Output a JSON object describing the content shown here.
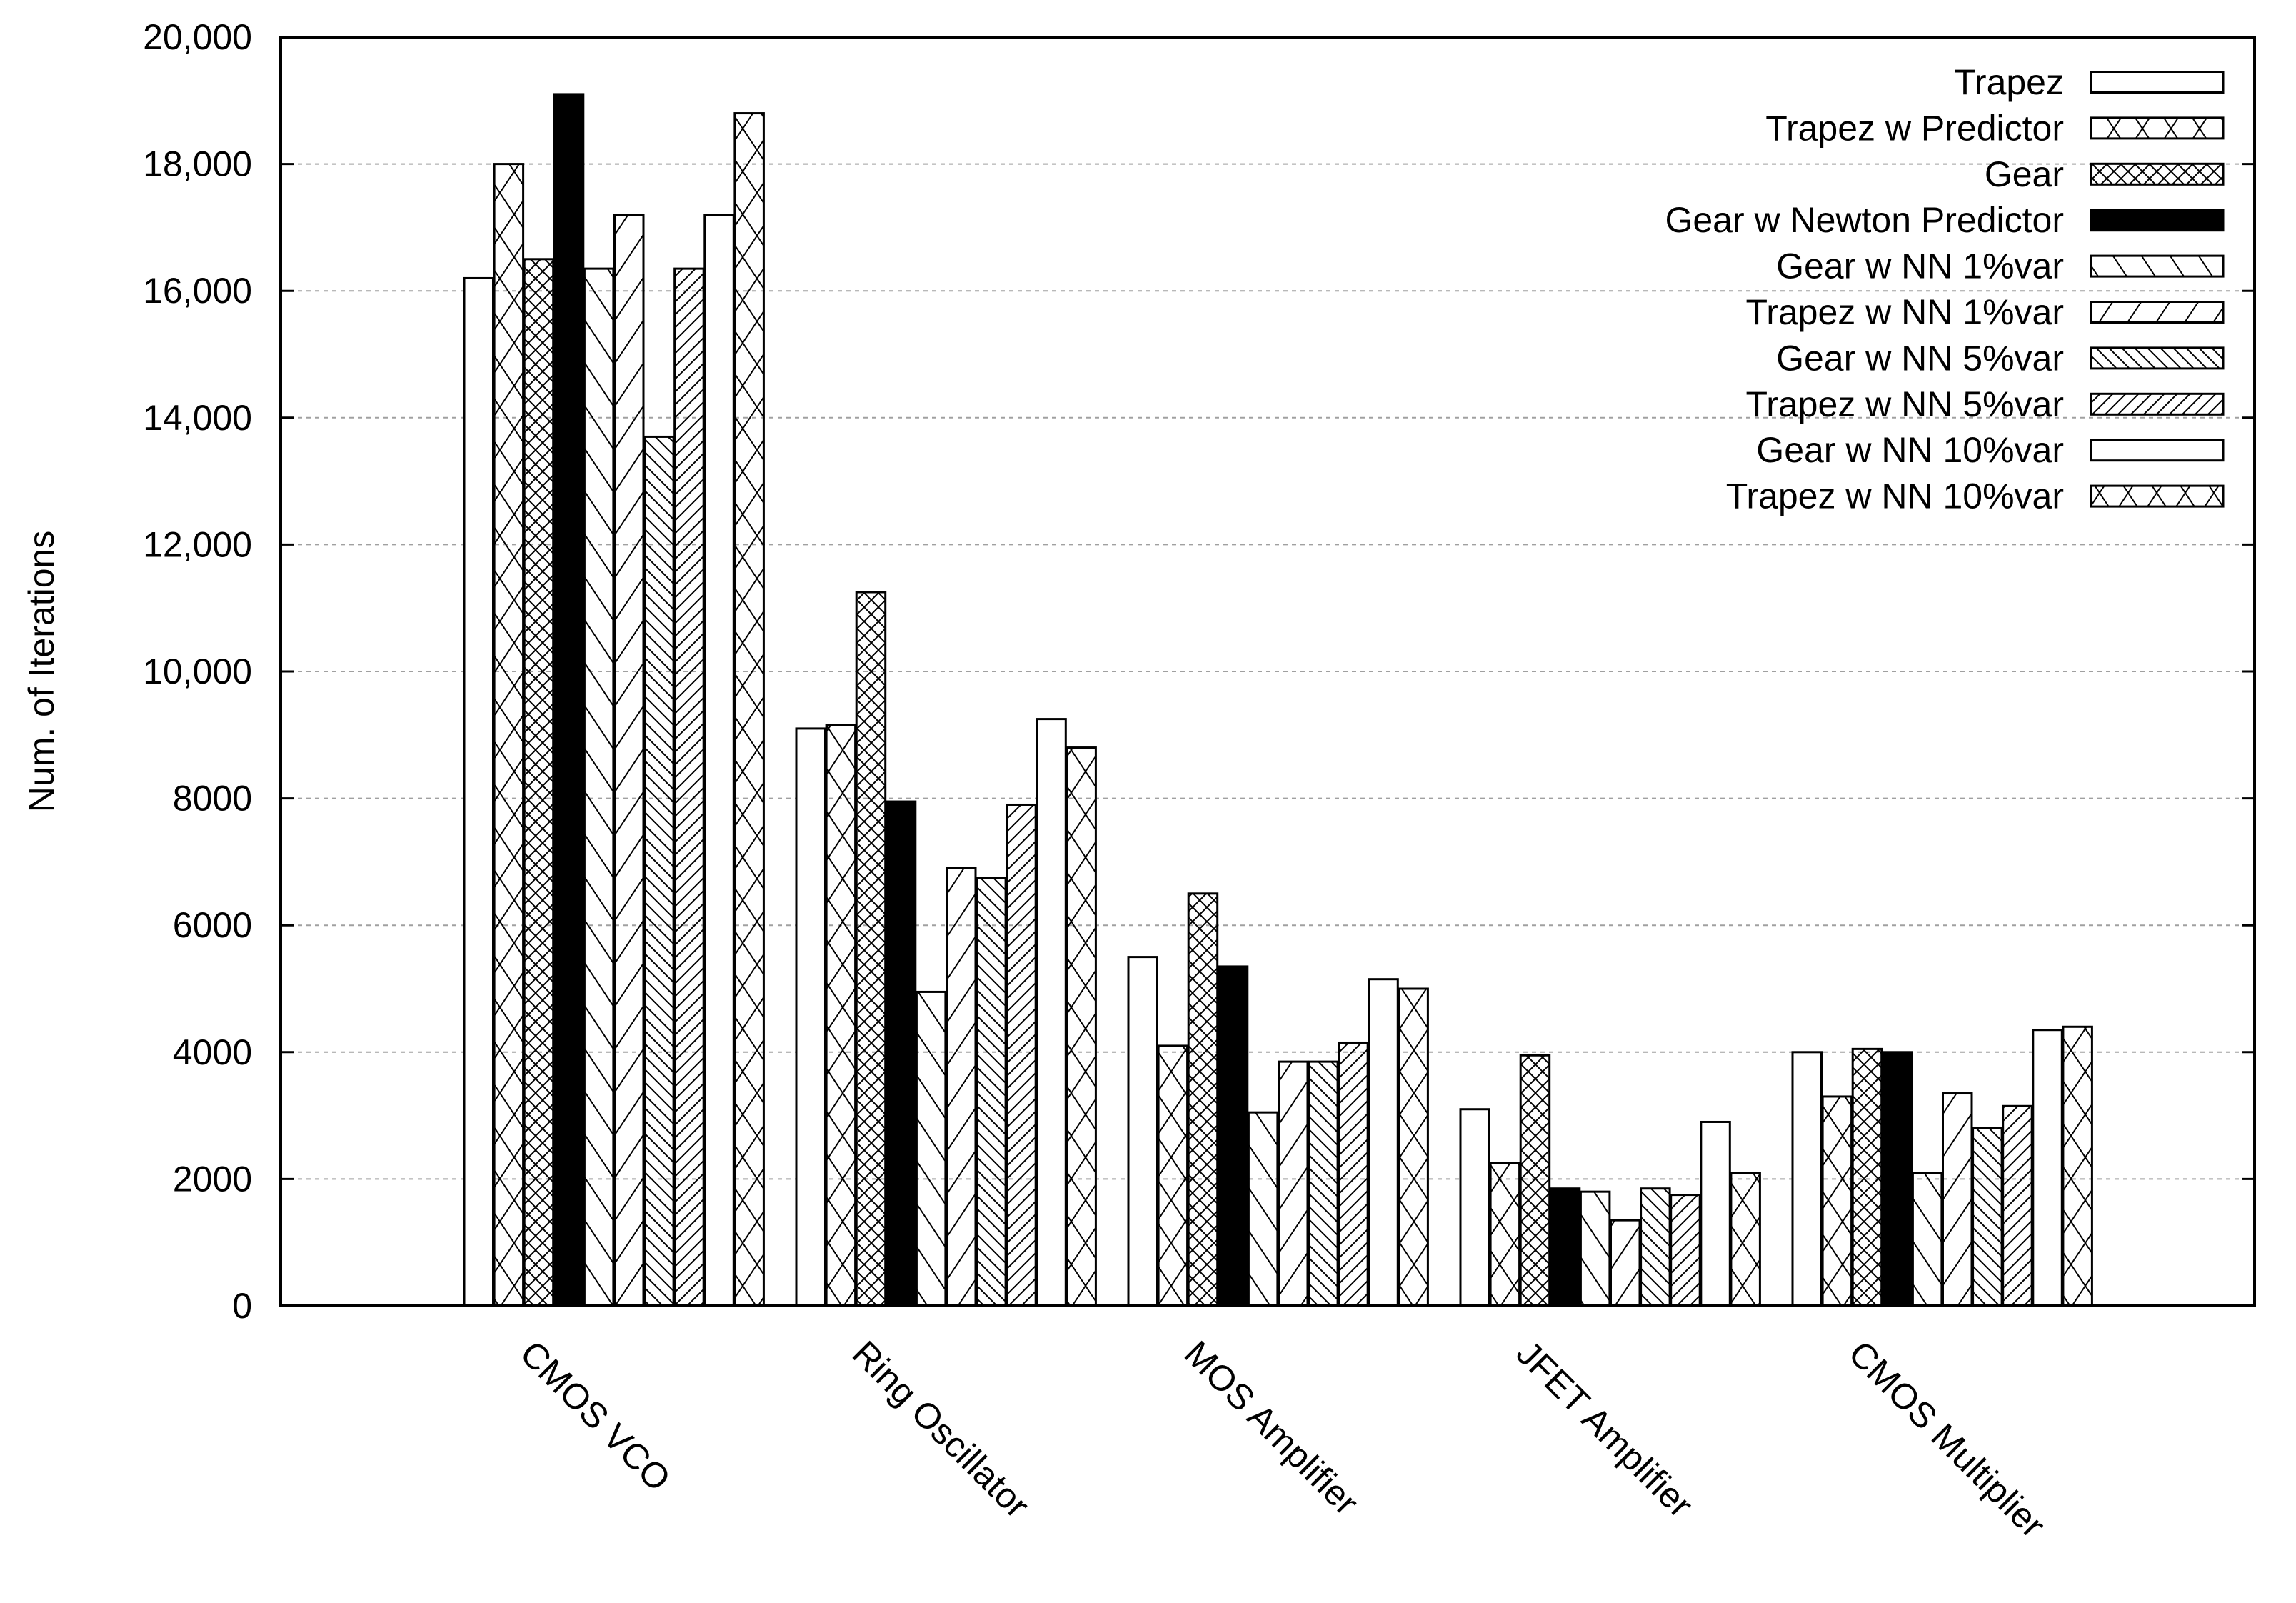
{
  "chart_data": {
    "type": "bar",
    "title": "",
    "xlabel": "",
    "ylabel": "Num. of Iterations",
    "ylim": [
      0,
      20000
    ],
    "yticks": [
      0,
      2000,
      4000,
      6000,
      8000,
      10000,
      12000,
      14000,
      16000,
      18000,
      20000
    ],
    "ytick_labels": [
      "0",
      "2000",
      "4000",
      "6000",
      "8000",
      "10,000",
      "12,000",
      "14,000",
      "16,000",
      "18,000",
      "20,000"
    ],
    "grid": "horizontal dashed",
    "legend_position": "top-right",
    "categories": [
      "CMOS VCO",
      "Ring Oscillator",
      "MOS Amplifier",
      "JFET Amplifier",
      "CMOS Multiplier"
    ],
    "series": [
      {
        "name": "Trapez",
        "pattern": "none",
        "values": [
          16200,
          9100,
          5500,
          3100,
          4000
        ]
      },
      {
        "name": "Trapez  w Predictor",
        "pattern": "cross-wide",
        "values": [
          18000,
          9150,
          4100,
          2250,
          3300
        ]
      },
      {
        "name": "Gear",
        "pattern": "cross-dense",
        "values": [
          16500,
          11250,
          6500,
          3950,
          4050
        ]
      },
      {
        "name": "Gear w Newton Predictor",
        "pattern": "solid",
        "values": [
          19100,
          7950,
          5350,
          1850,
          4000
        ]
      },
      {
        "name": "Gear w NN  1%var",
        "pattern": "backslash",
        "values": [
          16350,
          4950,
          3050,
          1800,
          2100
        ]
      },
      {
        "name": "Trapez w NN 1%var",
        "pattern": "slash",
        "values": [
          17200,
          6900,
          3850,
          1350,
          3350
        ]
      },
      {
        "name": "Gear w NN  5%var",
        "pattern": "backslash-dense",
        "values": [
          13700,
          6750,
          3850,
          1850,
          2800
        ]
      },
      {
        "name": "Trapez w NN  5%var",
        "pattern": "slash-dense",
        "values": [
          16350,
          7900,
          4150,
          1750,
          3150
        ]
      },
      {
        "name": "Gear w NN  10%var",
        "pattern": "none",
        "values": [
          17200,
          9250,
          5150,
          2900,
          4350
        ]
      },
      {
        "name": "Trapez w NN 10%var",
        "pattern": "cross-wide",
        "values": [
          18800,
          8800,
          5000,
          2100,
          4400
        ]
      }
    ],
    "colors": {
      "stroke": "#000000",
      "solid": "#000000",
      "background": "#ffffff",
      "grid": "#a0a0a0"
    }
  }
}
